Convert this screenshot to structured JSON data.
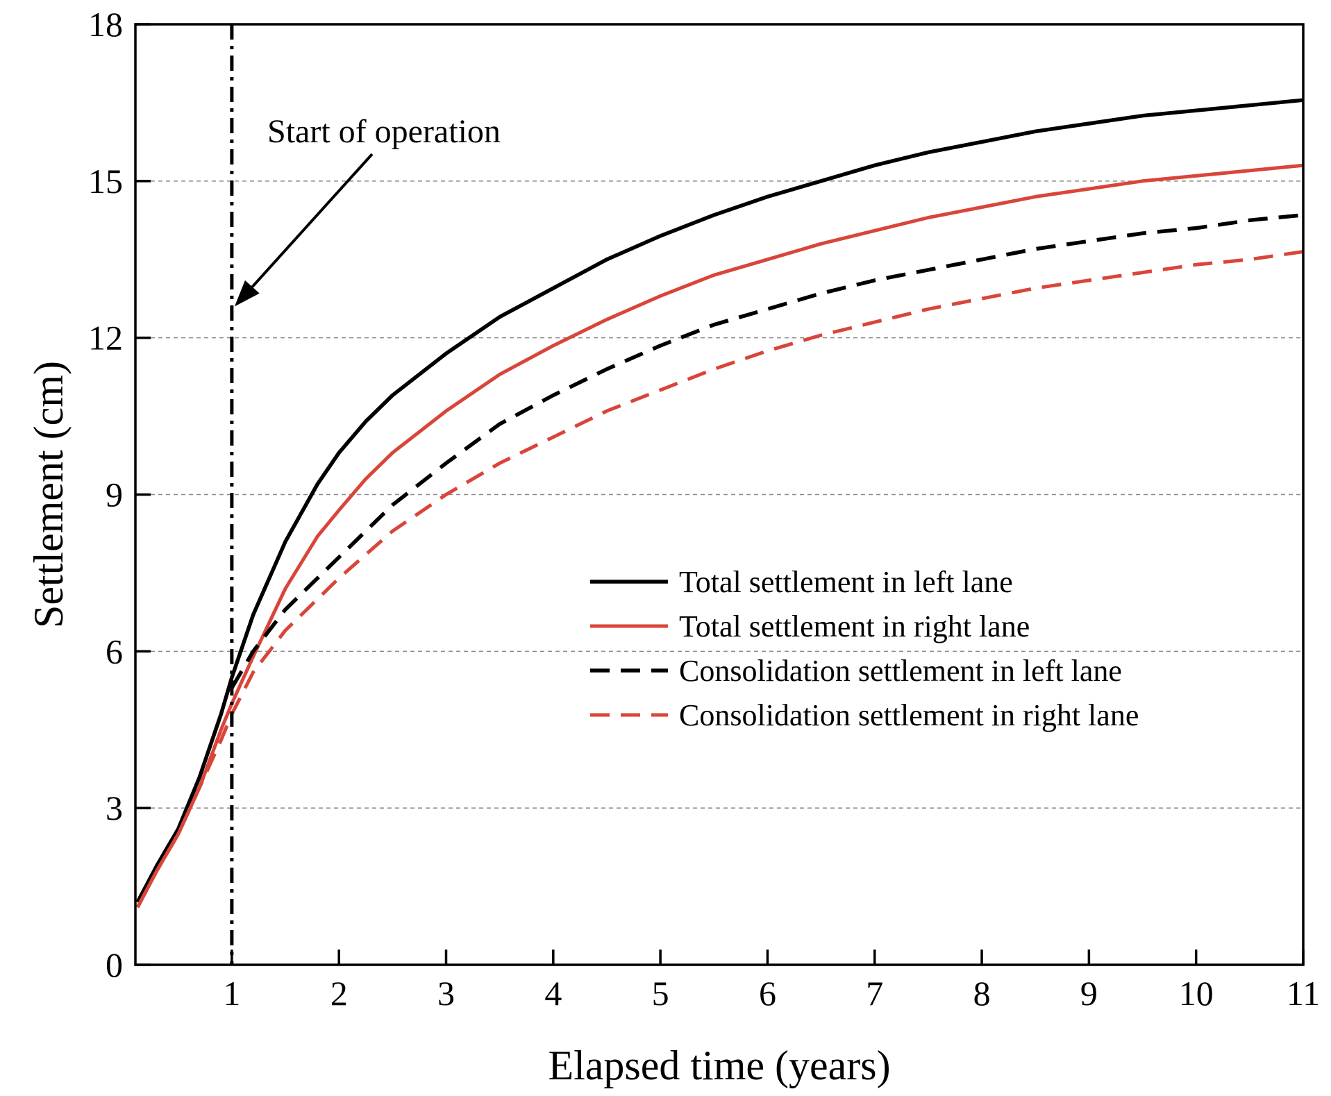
{
  "chart_data": {
    "type": "line",
    "xlabel": "Elapsed time (years)",
    "ylabel": "Settlement (cm)",
    "xlim": [
      0.1,
      11
    ],
    "ylim": [
      0,
      18
    ],
    "xticks": [
      1,
      2,
      3,
      4,
      5,
      6,
      7,
      8,
      9,
      10,
      11
    ],
    "yticks": [
      0,
      3,
      6,
      9,
      12,
      15,
      18
    ],
    "grid": "horizontal dashed at y ticks",
    "legend_position": "center-right",
    "colors": {
      "black": "#000000",
      "red": "#d9453a"
    },
    "annotation": {
      "text": "Start of operation",
      "x": 1,
      "y": 12.6
    },
    "reference_line": {
      "x": 1,
      "style": "dash-dot"
    },
    "series": [
      {
        "name": "Total settlement in left lane",
        "color": "#000000",
        "style": "solid",
        "x": [
          0.12,
          0.3,
          0.5,
          0.7,
          0.9,
          1.0,
          1.2,
          1.5,
          1.8,
          2.0,
          2.25,
          2.5,
          3.0,
          3.5,
          4.0,
          4.5,
          5.0,
          5.5,
          6.0,
          6.5,
          7.0,
          7.5,
          8.0,
          8.5,
          9.0,
          9.5,
          10.0,
          10.5,
          11.0
        ],
        "y": [
          1.2,
          1.9,
          2.6,
          3.6,
          4.8,
          5.5,
          6.7,
          8.1,
          9.2,
          9.8,
          10.4,
          10.9,
          11.7,
          12.4,
          12.95,
          13.5,
          13.95,
          14.35,
          14.7,
          15.0,
          15.3,
          15.55,
          15.75,
          15.95,
          16.1,
          16.25,
          16.35,
          16.45,
          16.55
        ]
      },
      {
        "name": "Total settlement in right lane",
        "color": "#d9453a",
        "style": "solid",
        "x": [
          0.12,
          0.3,
          0.5,
          0.7,
          0.9,
          1.0,
          1.2,
          1.5,
          1.8,
          2.0,
          2.25,
          2.5,
          3.0,
          3.5,
          4.0,
          4.5,
          5.0,
          5.5,
          6.0,
          6.5,
          7.0,
          7.5,
          8.0,
          8.5,
          9.0,
          9.5,
          10.0,
          10.5,
          11.0
        ],
        "y": [
          1.1,
          1.8,
          2.5,
          3.4,
          4.5,
          5.0,
          5.9,
          7.2,
          8.2,
          8.7,
          9.3,
          9.8,
          10.6,
          11.3,
          11.85,
          12.35,
          12.8,
          13.2,
          13.5,
          13.8,
          14.05,
          14.3,
          14.5,
          14.7,
          14.85,
          15.0,
          15.1,
          15.2,
          15.3
        ]
      },
      {
        "name": "Consolidation settlement in left lane",
        "color": "#000000",
        "style": "dashed",
        "x": [
          1.0,
          1.2,
          1.5,
          1.8,
          2.0,
          2.5,
          3.0,
          3.5,
          4.0,
          4.5,
          5.0,
          5.5,
          6.0,
          6.5,
          7.0,
          7.5,
          8.0,
          8.5,
          9.0,
          9.5,
          10.0,
          10.5,
          11.0
        ],
        "y": [
          5.3,
          6.0,
          6.8,
          7.4,
          7.8,
          8.8,
          9.6,
          10.35,
          10.9,
          11.4,
          11.85,
          12.25,
          12.55,
          12.85,
          13.1,
          13.3,
          13.5,
          13.7,
          13.85,
          14.0,
          14.1,
          14.25,
          14.35
        ]
      },
      {
        "name": "Consolidation settlement in right lane",
        "color": "#d9453a",
        "style": "dashed",
        "x": [
          0.12,
          0.3,
          0.5,
          0.7,
          0.9,
          1.0,
          1.2,
          1.5,
          1.8,
          2.0,
          2.5,
          3.0,
          3.5,
          4.0,
          4.5,
          5.0,
          5.5,
          6.0,
          6.5,
          7.0,
          7.5,
          8.0,
          8.5,
          9.0,
          9.5,
          10.0,
          10.5,
          11.0
        ],
        "y": [
          1.1,
          1.8,
          2.5,
          3.4,
          4.3,
          4.8,
          5.6,
          6.4,
          7.0,
          7.4,
          8.3,
          9.0,
          9.6,
          10.1,
          10.6,
          11.0,
          11.4,
          11.75,
          12.05,
          12.3,
          12.55,
          12.75,
          12.95,
          13.1,
          13.25,
          13.4,
          13.5,
          13.65
        ]
      }
    ]
  }
}
